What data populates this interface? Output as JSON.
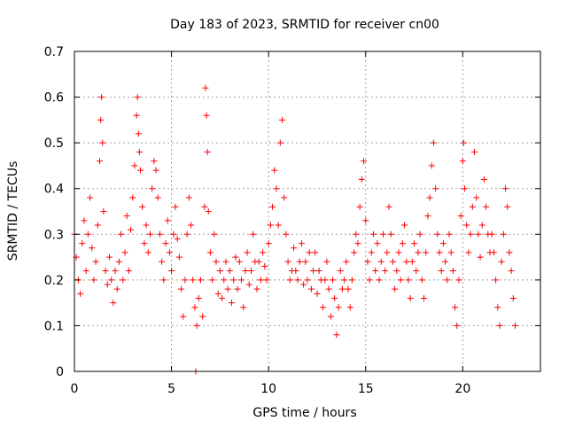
{
  "chart_data": {
    "type": "scatter",
    "title": "Day 183 of 2023, SRMTID for receiver cn00",
    "xlabel": "GPS time / hours",
    "ylabel": "SRMTID / TECUs",
    "xlim": [
      0,
      24
    ],
    "ylim": [
      0,
      0.7
    ],
    "x_ticks": [
      0,
      5,
      10,
      15,
      20
    ],
    "x_tick_labels": [
      "0",
      "5",
      "10",
      "15",
      "20"
    ],
    "y_ticks": [
      0,
      0.1,
      0.2,
      0.3,
      0.4,
      0.5,
      0.6,
      0.7
    ],
    "y_tick_labels": [
      "0",
      "0.1",
      "0.2",
      "0.3",
      "0.4",
      "0.5",
      "0.6",
      "0.7"
    ],
    "grid": true,
    "marker": "plus",
    "color": "#ff0000",
    "series": [
      {
        "name": "SRMTID",
        "x": [
          0.0,
          0.1,
          0.2,
          0.3,
          0.4,
          0.5,
          0.6,
          0.7,
          0.8,
          0.9,
          1.0,
          1.1,
          1.2,
          1.3,
          1.35,
          1.4,
          1.45,
          1.5,
          1.6,
          1.7,
          1.8,
          1.9,
          2.0,
          2.1,
          2.2,
          2.3,
          2.4,
          2.5,
          2.6,
          2.7,
          2.8,
          2.9,
          3.0,
          3.1,
          3.2,
          3.25,
          3.3,
          3.35,
          3.4,
          3.5,
          3.6,
          3.7,
          3.8,
          3.9,
          4.0,
          4.1,
          4.2,
          4.3,
          4.4,
          4.5,
          4.6,
          4.7,
          4.8,
          4.9,
          5.0,
          5.1,
          5.2,
          5.3,
          5.4,
          5.5,
          5.6,
          5.7,
          5.8,
          5.9,
          6.0,
          6.1,
          6.2,
          6.25,
          6.3,
          6.4,
          6.5,
          6.6,
          6.7,
          6.75,
          6.8,
          6.85,
          6.9,
          7.0,
          7.1,
          7.2,
          7.3,
          7.4,
          7.5,
          7.6,
          7.7,
          7.8,
          7.9,
          8.0,
          8.1,
          8.2,
          8.3,
          8.4,
          8.5,
          8.6,
          8.7,
          8.8,
          8.9,
          9.0,
          9.1,
          9.2,
          9.3,
          9.4,
          9.5,
          9.6,
          9.7,
          9.8,
          9.9,
          10.0,
          10.1,
          10.2,
          10.3,
          10.4,
          10.5,
          10.6,
          10.7,
          10.8,
          10.9,
          11.0,
          11.1,
          11.2,
          11.3,
          11.4,
          11.5,
          11.6,
          11.7,
          11.8,
          11.9,
          12.0,
          12.1,
          12.2,
          12.3,
          12.4,
          12.5,
          12.6,
          12.7,
          12.8,
          12.9,
          13.0,
          13.1,
          13.2,
          13.3,
          13.4,
          13.5,
          13.6,
          13.7,
          13.8,
          13.9,
          14.0,
          14.1,
          14.2,
          14.3,
          14.4,
          14.5,
          14.6,
          14.7,
          14.8,
          14.9,
          15.0,
          15.1,
          15.2,
          15.3,
          15.4,
          15.5,
          15.6,
          15.7,
          15.8,
          15.9,
          16.0,
          16.1,
          16.2,
          16.3,
          16.4,
          16.5,
          16.6,
          16.7,
          16.8,
          16.9,
          17.0,
          17.1,
          17.2,
          17.3,
          17.4,
          17.5,
          17.6,
          17.7,
          17.8,
          17.9,
          18.0,
          18.1,
          18.2,
          18.3,
          18.4,
          18.5,
          18.6,
          18.7,
          18.8,
          18.9,
          19.0,
          19.1,
          19.2,
          19.3,
          19.4,
          19.5,
          19.6,
          19.7,
          19.8,
          19.9,
          20.0,
          20.05,
          20.1,
          20.2,
          20.3,
          20.4,
          20.5,
          20.6,
          20.7,
          20.8,
          20.9,
          21.0,
          21.1,
          21.2,
          21.3,
          21.4,
          21.5,
          21.6,
          21.7,
          21.8,
          21.9,
          22.0,
          22.1,
          22.2,
          22.3,
          22.4,
          22.5,
          22.6,
          22.7
        ],
        "y": [
          0.3,
          0.25,
          0.2,
          0.17,
          0.28,
          0.33,
          0.22,
          0.3,
          0.38,
          0.27,
          0.2,
          0.24,
          0.32,
          0.46,
          0.55,
          0.6,
          0.5,
          0.35,
          0.22,
          0.19,
          0.25,
          0.2,
          0.15,
          0.22,
          0.18,
          0.24,
          0.3,
          0.2,
          0.26,
          0.34,
          0.22,
          0.31,
          0.38,
          0.45,
          0.56,
          0.6,
          0.52,
          0.48,
          0.44,
          0.36,
          0.28,
          0.32,
          0.26,
          0.3,
          0.4,
          0.46,
          0.44,
          0.38,
          0.3,
          0.24,
          0.2,
          0.28,
          0.33,
          0.26,
          0.22,
          0.3,
          0.36,
          0.29,
          0.25,
          0.18,
          0.12,
          0.2,
          0.3,
          0.38,
          0.32,
          0.2,
          0.14,
          0.0,
          0.1,
          0.16,
          0.2,
          0.12,
          0.36,
          0.62,
          0.56,
          0.48,
          0.35,
          0.26,
          0.2,
          0.3,
          0.24,
          0.17,
          0.22,
          0.16,
          0.2,
          0.24,
          0.18,
          0.22,
          0.15,
          0.2,
          0.25,
          0.18,
          0.24,
          0.2,
          0.14,
          0.22,
          0.26,
          0.19,
          0.22,
          0.3,
          0.24,
          0.18,
          0.24,
          0.2,
          0.26,
          0.23,
          0.2,
          0.28,
          0.32,
          0.36,
          0.44,
          0.4,
          0.32,
          0.5,
          0.55,
          0.38,
          0.3,
          0.24,
          0.2,
          0.22,
          0.27,
          0.22,
          0.2,
          0.24,
          0.28,
          0.19,
          0.24,
          0.2,
          0.26,
          0.18,
          0.22,
          0.26,
          0.17,
          0.22,
          0.2,
          0.14,
          0.2,
          0.24,
          0.18,
          0.12,
          0.2,
          0.16,
          0.08,
          0.14,
          0.22,
          0.18,
          0.2,
          0.24,
          0.18,
          0.14,
          0.2,
          0.26,
          0.3,
          0.28,
          0.36,
          0.42,
          0.46,
          0.33,
          0.24,
          0.2,
          0.26,
          0.3,
          0.22,
          0.28,
          0.2,
          0.24,
          0.3,
          0.22,
          0.26,
          0.36,
          0.3,
          0.24,
          0.18,
          0.22,
          0.26,
          0.2,
          0.28,
          0.32,
          0.24,
          0.2,
          0.16,
          0.24,
          0.28,
          0.22,
          0.26,
          0.3,
          0.2,
          0.16,
          0.26,
          0.34,
          0.38,
          0.45,
          0.5,
          0.4,
          0.3,
          0.26,
          0.22,
          0.28,
          0.24,
          0.2,
          0.3,
          0.26,
          0.22,
          0.14,
          0.1,
          0.2,
          0.34,
          0.46,
          0.5,
          0.4,
          0.32,
          0.26,
          0.3,
          0.36,
          0.48,
          0.38,
          0.3,
          0.25,
          0.32,
          0.42,
          0.36,
          0.3,
          0.26,
          0.3,
          0.26,
          0.2,
          0.14,
          0.1,
          0.24,
          0.3,
          0.4,
          0.36,
          0.26,
          0.22,
          0.16,
          0.1
        ]
      }
    ]
  }
}
